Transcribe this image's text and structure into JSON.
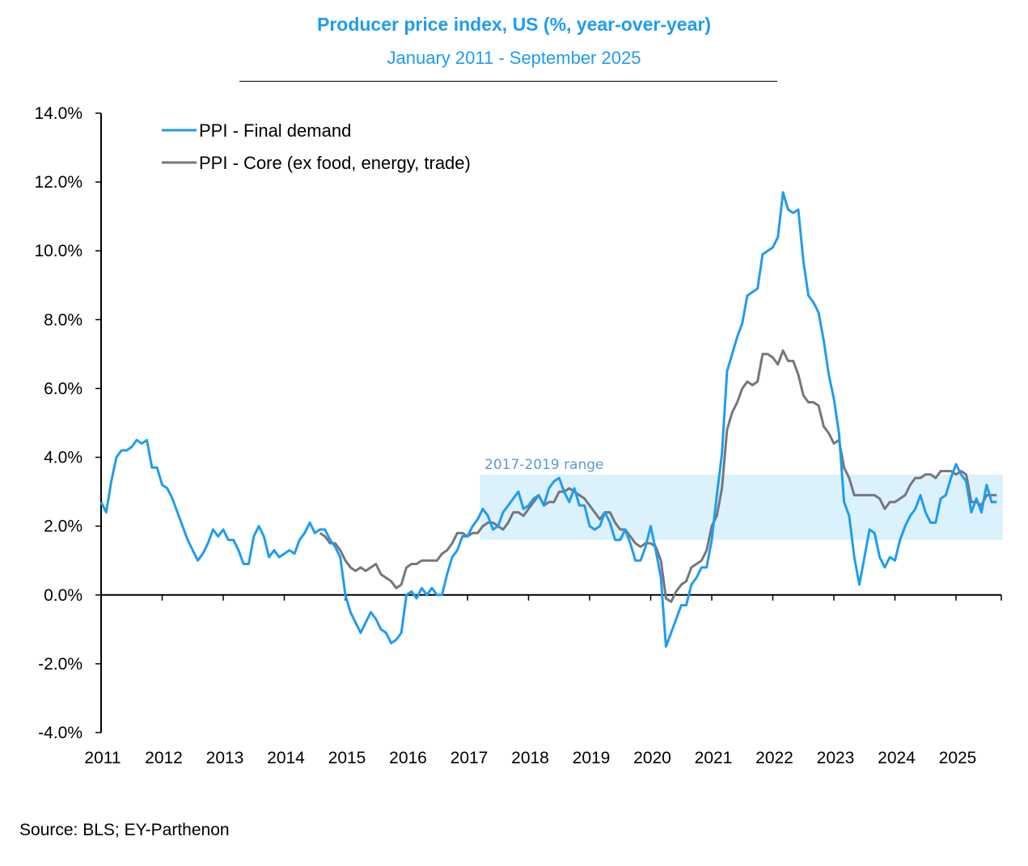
{
  "chart_data": {
    "type": "line",
    "title": "Producer price index, US (%,  year-over-year)",
    "subtitle": "January 2011 - September 2025",
    "source": "Source: BLS; EY-Parthenon",
    "xlabel": "",
    "ylabel": "",
    "ylim": [
      -4,
      14
    ],
    "yticks": [
      -4,
      -2,
      0,
      2,
      4,
      6,
      8,
      10,
      12,
      14
    ],
    "ytick_labels": [
      "-4.0%",
      "-2.0%",
      "0.0%",
      "2.0%",
      "4.0%",
      "6.0%",
      "8.0%",
      "10.0%",
      "12.0%",
      "14.0%"
    ],
    "xtick_labels": [
      "2011",
      "2012",
      "2013",
      "2014",
      "2015",
      "2016",
      "2017",
      "2018",
      "2019",
      "2020",
      "2021",
      "2022",
      "2023",
      "2024",
      "2025"
    ],
    "x_start": "2011-01",
    "x_frequency": "monthly",
    "legend_position": "top-left",
    "grid": false,
    "range_band": {
      "label": "2017-2019 range",
      "low": 1.6,
      "high": 3.5,
      "start": "2017-03",
      "end": "2025-09",
      "color": "#dbf1fb"
    },
    "series": [
      {
        "name": "PPI - Final demand",
        "color": "#1f9cf0",
        "start": "2011-01",
        "values": [
          2.7,
          2.4,
          3.3,
          4.0,
          4.2,
          4.2,
          4.3,
          4.5,
          4.4,
          4.5,
          3.7,
          3.7,
          3.2,
          3.1,
          2.8,
          2.4,
          2.0,
          1.6,
          1.3,
          1.0,
          1.2,
          1.5,
          1.9,
          1.7,
          1.9,
          1.6,
          1.6,
          1.3,
          0.9,
          0.9,
          1.7,
          2.0,
          1.7,
          1.1,
          1.3,
          1.1,
          1.2,
          1.3,
          1.2,
          1.6,
          1.8,
          2.1,
          1.8,
          1.9,
          1.9,
          1.6,
          1.4,
          1.1,
          0.0,
          -0.5,
          -0.8,
          -1.1,
          -0.8,
          -0.5,
          -0.7,
          -1.0,
          -1.1,
          -1.4,
          -1.3,
          -1.1,
          0.0,
          0.1,
          -0.1,
          0.2,
          0.0,
          0.2,
          0.0,
          0.0,
          0.6,
          1.1,
          1.3,
          1.7,
          1.7,
          2.0,
          2.2,
          2.5,
          2.3,
          1.9,
          2.0,
          2.4,
          2.6,
          2.8,
          3.0,
          2.5,
          2.6,
          2.8,
          2.9,
          2.6,
          3.1,
          3.3,
          3.4,
          3.0,
          2.7,
          3.1,
          2.6,
          2.6,
          2.0,
          1.9,
          2.0,
          2.4,
          2.1,
          1.6,
          1.6,
          1.9,
          1.5,
          1.0,
          1.0,
          1.4,
          2.0,
          1.3,
          0.5,
          -1.5,
          -1.1,
          -0.7,
          -0.3,
          -0.3,
          0.3,
          0.5,
          0.8,
          0.8,
          1.6,
          2.9,
          4.1,
          6.5,
          7.0,
          7.5,
          7.9,
          8.7,
          8.8,
          8.9,
          9.9,
          10.0,
          10.1,
          10.4,
          11.7,
          11.2,
          11.1,
          11.2,
          9.7,
          8.7,
          8.5,
          8.2,
          7.4,
          6.4,
          5.7,
          4.7,
          2.7,
          2.3,
          1.1,
          0.3,
          1.1,
          1.9,
          1.8,
          1.1,
          0.8,
          1.1,
          1.0,
          1.6,
          2.0,
          2.3,
          2.5,
          2.9,
          2.4,
          2.1,
          2.1,
          2.8,
          2.9,
          3.4,
          3.8,
          3.5,
          3.3,
          2.4,
          2.8,
          2.4,
          3.2,
          2.7,
          2.7
        ]
      },
      {
        "name": "PPI - Core (ex food, energy, trade)",
        "color": "#76767e",
        "start": "2014-08",
        "values": [
          1.8,
          1.7,
          1.5,
          1.5,
          1.3,
          1.0,
          0.8,
          0.7,
          0.8,
          0.7,
          0.8,
          0.9,
          0.6,
          0.5,
          0.4,
          0.2,
          0.3,
          0.8,
          0.9,
          0.9,
          1.0,
          1.0,
          1.0,
          1.0,
          1.2,
          1.3,
          1.5,
          1.8,
          1.8,
          1.7,
          1.8,
          1.8,
          2.0,
          2.1,
          2.1,
          2.0,
          1.9,
          2.1,
          2.4,
          2.4,
          2.3,
          2.5,
          2.7,
          2.9,
          2.6,
          2.7,
          2.7,
          3.0,
          3.0,
          3.1,
          3.0,
          2.9,
          2.8,
          2.6,
          2.4,
          2.2,
          2.4,
          2.4,
          2.1,
          1.9,
          1.9,
          1.7,
          1.5,
          1.4,
          1.5,
          1.5,
          1.4,
          1.0,
          -0.1,
          -0.2,
          0.1,
          0.3,
          0.4,
          0.8,
          0.9,
          1.0,
          1.3,
          2.0,
          2.3,
          3.1,
          4.8,
          5.3,
          5.6,
          6.0,
          6.2,
          6.1,
          6.2,
          7.0,
          7.0,
          6.9,
          6.7,
          7.1,
          6.8,
          6.8,
          6.4,
          5.8,
          5.6,
          5.6,
          5.5,
          4.9,
          4.7,
          4.4,
          4.5,
          3.7,
          3.4,
          2.9,
          2.9,
          2.9,
          2.9,
          2.9,
          2.8,
          2.5,
          2.7,
          2.7,
          2.8,
          2.9,
          3.2,
          3.4,
          3.4,
          3.5,
          3.5,
          3.4,
          3.6,
          3.6,
          3.6,
          3.5,
          3.6,
          3.5,
          2.7,
          2.7,
          2.6,
          2.9,
          2.9,
          2.9
        ]
      }
    ]
  }
}
